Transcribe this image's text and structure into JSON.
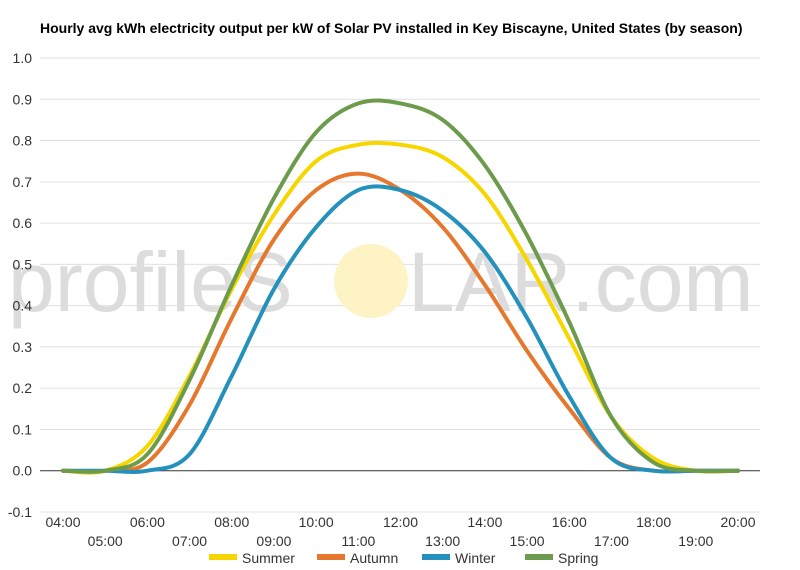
{
  "watermark": {
    "left": "profileS",
    "right": "LAR.com",
    "sun_color": "#fdf3c4"
  },
  "chart_data": {
    "type": "line",
    "title": "Hourly avg kWh electricity output per kW of Solar PV installed in Key Biscayne, United States (by season)",
    "xlabel": "",
    "ylabel": "",
    "ylim": [
      -0.1,
      1.0
    ],
    "yticks": [
      "-0.1",
      "0.0",
      "0.1",
      "0.2",
      "0.3",
      "0.4",
      "0.5",
      "0.6",
      "0.7",
      "0.8",
      "0.9",
      "1.0"
    ],
    "xticks": [
      "04:00",
      "05:00",
      "06:00",
      "07:00",
      "08:00",
      "09:00",
      "10:00",
      "11:00",
      "12:00",
      "13:00",
      "14:00",
      "15:00",
      "16:00",
      "17:00",
      "18:00",
      "19:00",
      "20:00"
    ],
    "grid": true,
    "legend_position": "bottom",
    "series": [
      {
        "name": "Summer",
        "color": "#f7d600",
        "values": [
          0.0,
          0.0,
          0.06,
          0.23,
          0.44,
          0.62,
          0.75,
          0.79,
          0.79,
          0.76,
          0.67,
          0.51,
          0.32,
          0.13,
          0.03,
          0.0,
          0.0
        ]
      },
      {
        "name": "Autumn",
        "color": "#e6782e",
        "values": [
          0.0,
          0.0,
          0.02,
          0.16,
          0.37,
          0.56,
          0.68,
          0.72,
          0.68,
          0.59,
          0.45,
          0.29,
          0.15,
          0.03,
          0.0,
          0.0,
          0.0
        ]
      },
      {
        "name": "Winter",
        "color": "#2491bd",
        "values": [
          0.0,
          0.0,
          0.0,
          0.04,
          0.23,
          0.44,
          0.59,
          0.68,
          0.68,
          0.63,
          0.53,
          0.37,
          0.18,
          0.03,
          0.0,
          0.0,
          0.0
        ]
      },
      {
        "name": "Spring",
        "color": "#6d9b4c",
        "values": [
          0.0,
          0.0,
          0.04,
          0.22,
          0.45,
          0.66,
          0.82,
          0.89,
          0.89,
          0.85,
          0.74,
          0.57,
          0.36,
          0.13,
          0.02,
          0.0,
          0.0
        ]
      }
    ]
  }
}
